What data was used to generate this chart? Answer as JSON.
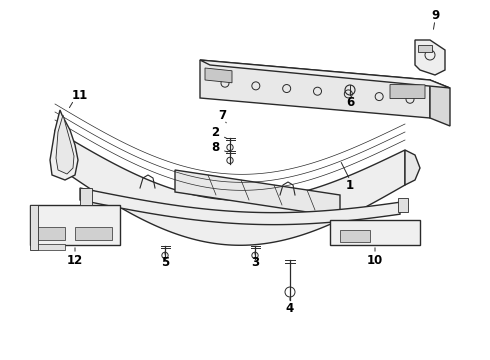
{
  "bg_color": "#ffffff",
  "line_color": "#2a2a2a",
  "label_color": "#000000",
  "label_fs": 8.5,
  "lw": 1.0
}
